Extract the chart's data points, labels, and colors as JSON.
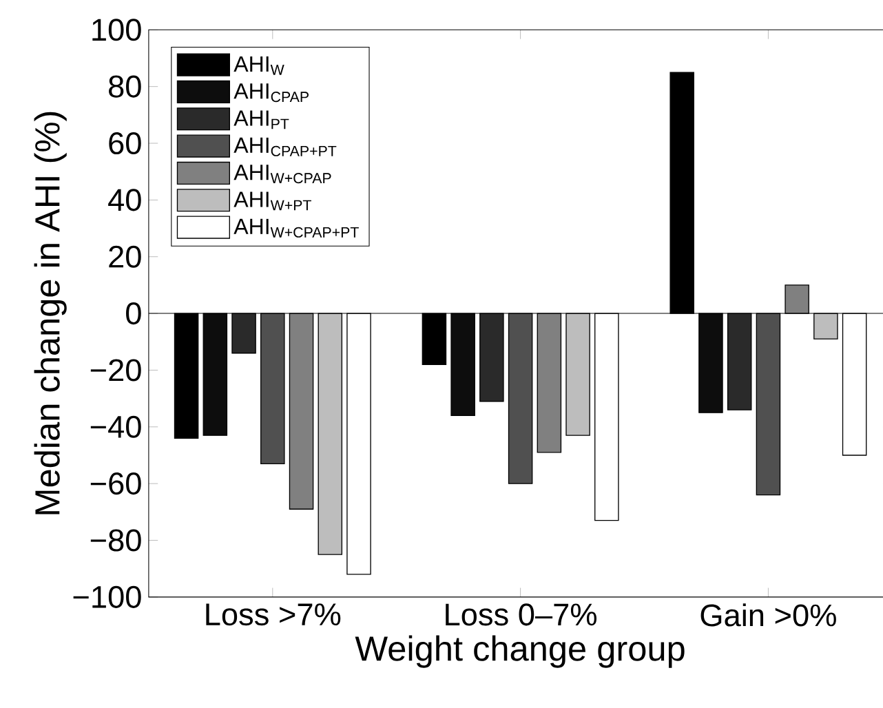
{
  "chart_data": {
    "type": "bar",
    "xlabel": "Weight change group",
    "ylabel": "Median change in AHI (%)",
    "categories": [
      "Loss >7%",
      "Loss 0–7%",
      "Gain >0%"
    ],
    "series": [
      {
        "name": "AHI$_{W}$",
        "color": "#000000",
        "values": [
          -44,
          -18,
          85
        ]
      },
      {
        "name": "AHI$_{CPAP}$",
        "color": "#0d0d0d",
        "values": [
          -43,
          -36,
          -35
        ]
      },
      {
        "name": "AHI$_{PT}$",
        "color": "#2a2a2a",
        "values": [
          -14,
          -31,
          -34
        ]
      },
      {
        "name": "AHI$_{CPAP+PT}$",
        "color": "#505050",
        "values": [
          -53,
          -60,
          -64
        ]
      },
      {
        "name": "AHI$_{W+CPAP}$",
        "color": "#808080",
        "values": [
          -69,
          -49,
          10
        ]
      },
      {
        "name": "AHI$_{W+PT}$",
        "color": "#bdbdbd",
        "values": [
          -85,
          -43,
          -9
        ]
      },
      {
        "name": "AHI$_{W+CPAP+PT}$",
        "color": "#ffffff",
        "values": [
          -92,
          -73,
          -50
        ]
      }
    ],
    "ylim": [
      -100,
      100
    ],
    "yticks": [
      {
        "value": -100,
        "label": "−100"
      },
      {
        "value": -80,
        "label": "−80"
      },
      {
        "value": -60,
        "label": "−60"
      },
      {
        "value": -40,
        "label": "−40"
      },
      {
        "value": -20,
        "label": "−20"
      },
      0,
      20,
      40,
      60,
      80,
      100
    ],
    "ref_lines": [
      {
        "axis": "y",
        "value": 0,
        "color": "#000000"
      }
    ],
    "legend": "top left"
  }
}
